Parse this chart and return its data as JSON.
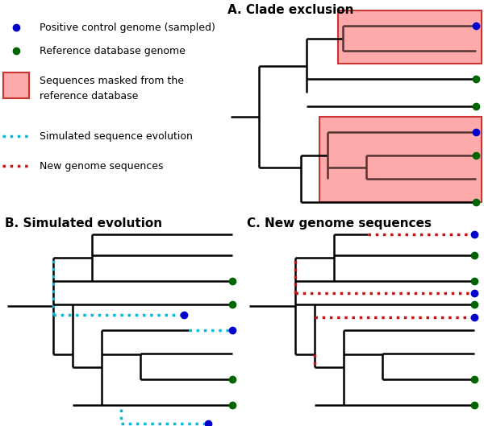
{
  "title_A": "A. Clade exclusion",
  "title_B": "B. Simulated evolution",
  "title_C": "C. New genome sequences",
  "blue_color": "#0000cc",
  "green_color": "#006400",
  "cyan_color": "#00bbdd",
  "red_color": "#cc1111",
  "pink_fill": "#ffaaaa",
  "pink_edge": "#cc3333",
  "black": "#000000",
  "dot_size": 7,
  "lw": 1.8,
  "dash_lw": 2.5,
  "fs_title": 11,
  "fs_legend": 9
}
